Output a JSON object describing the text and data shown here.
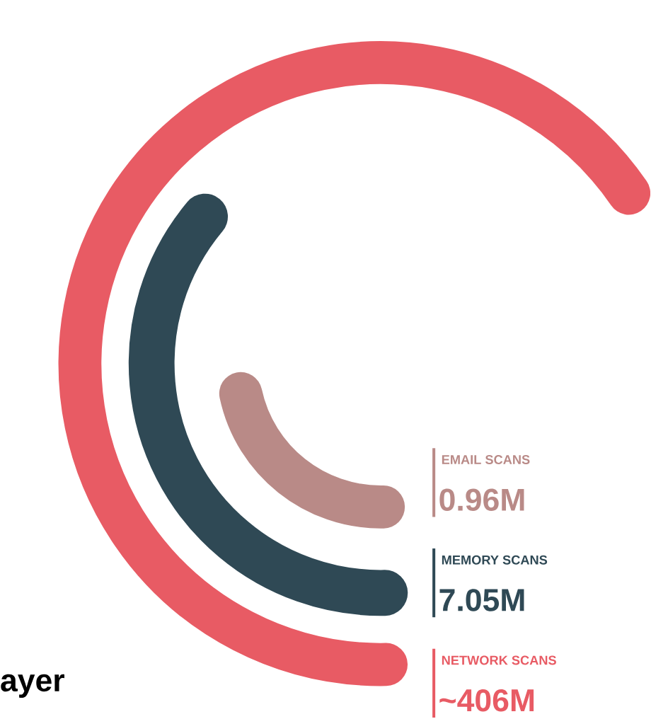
{
  "chart_data": {
    "type": "other",
    "categories": [
      "EMAIL SCANS",
      "MEMORY SCANS",
      "NETWORK SCANS"
    ],
    "values": [
      0.96,
      7.05,
      406
    ],
    "value_labels": [
      "0.96M",
      "7.05M",
      "~406M"
    ],
    "colors": [
      "#b98a87",
      "#2f4955",
      "#e85b64"
    ],
    "annotations": [
      "ayer"
    ]
  }
}
